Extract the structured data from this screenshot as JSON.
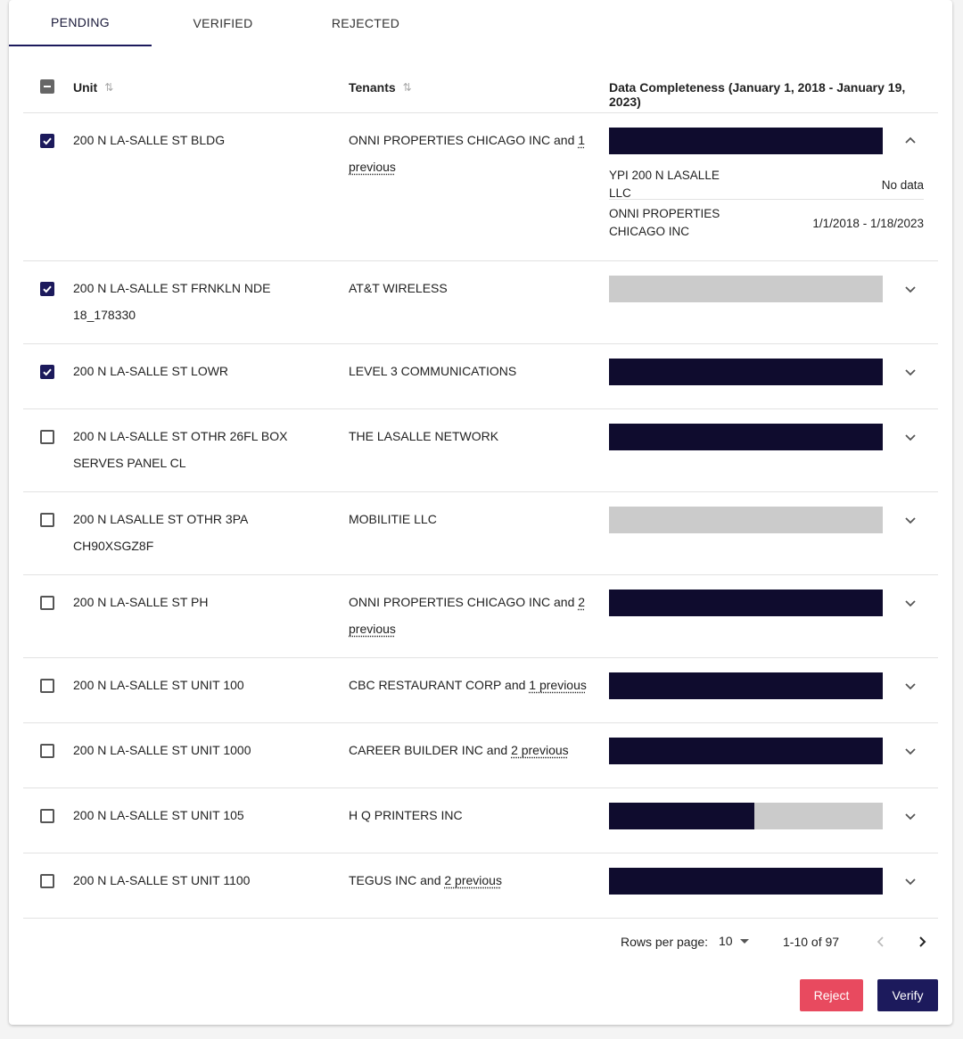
{
  "tabs": [
    {
      "label": "PENDING",
      "active": true
    },
    {
      "label": "VERIFIED",
      "active": false
    },
    {
      "label": "REJECTED",
      "active": false
    }
  ],
  "table": {
    "headers": {
      "unit": "Unit",
      "tenants": "Tenants",
      "completeness": "Data Completeness (January 1, 2018 - January 19, 2023)"
    },
    "select_all_state": "indeterminate",
    "rows": [
      {
        "checked": true,
        "unit": "200 N LA-SALLE ST BLDG",
        "tenant": "ONNI PROPERTIES CHICAGO INC",
        "and_text": " and ",
        "previous": "1 previous",
        "completeness": 1.0,
        "expanded": true,
        "details": [
          {
            "name": "YPI 200 N LASALLE LLC",
            "value": "No data"
          },
          {
            "name": "ONNI PROPERTIES CHICAGO INC",
            "value": "1/1/2018 - 1/18/2023"
          }
        ]
      },
      {
        "checked": true,
        "unit": "200 N LA-SALLE ST FRNKLN NDE 18_178330",
        "tenant": "AT&T WIRELESS",
        "and_text": "",
        "previous": "",
        "completeness": 0.0,
        "expanded": false
      },
      {
        "checked": true,
        "unit": "200 N LA-SALLE ST LOWR",
        "tenant": "LEVEL 3 COMMUNICATIONS",
        "and_text": "",
        "previous": "",
        "completeness": 1.0,
        "expanded": false
      },
      {
        "checked": false,
        "unit": "200 N LA-SALLE ST OTHR 26FL BOX SERVES PANEL CL",
        "tenant": "THE LASALLE NETWORK",
        "and_text": "",
        "previous": "",
        "completeness": 1.0,
        "expanded": false
      },
      {
        "checked": false,
        "unit": "200 N LASALLE ST OTHR 3PA CH90XSGZ8F",
        "tenant": "MOBILITIE LLC",
        "and_text": "",
        "previous": "",
        "completeness": 0.0,
        "expanded": false
      },
      {
        "checked": false,
        "unit": "200 N LA-SALLE ST PH",
        "tenant": "ONNI PROPERTIES CHICAGO INC",
        "and_text": " and ",
        "previous": "2 previous",
        "completeness": 1.0,
        "expanded": false
      },
      {
        "checked": false,
        "unit": "200 N LA-SALLE ST UNIT 100",
        "tenant": "CBC RESTAURANT CORP",
        "and_text": " and ",
        "previous": "1 previous",
        "completeness": 1.0,
        "expanded": false
      },
      {
        "checked": false,
        "unit": "200 N LA-SALLE ST UNIT 1000",
        "tenant": "CAREER BUILDER INC",
        "and_text": " and ",
        "previous": "2 previous",
        "completeness": 1.0,
        "expanded": false
      },
      {
        "checked": false,
        "unit": "200 N LA-SALLE ST UNIT 105",
        "tenant": "H Q PRINTERS INC",
        "and_text": "",
        "previous": "",
        "completeness": 0.53,
        "expanded": false
      },
      {
        "checked": false,
        "unit": "200 N LA-SALLE ST UNIT 1100",
        "tenant": "TEGUS INC",
        "and_text": " and ",
        "previous": "2 previous",
        "completeness": 1.0,
        "expanded": false
      }
    ]
  },
  "pagination": {
    "rows_per_page_label": "Rows per page:",
    "rows_per_page": "10",
    "range": "1-10 of 97"
  },
  "actions": {
    "reject_label": "Reject",
    "verify_label": "Verify"
  },
  "colors": {
    "accent": "#1c1a5c",
    "bar_fill": "#0f0c2e",
    "bar_empty": "#cbcbcb",
    "reject": "#e84a5f"
  }
}
